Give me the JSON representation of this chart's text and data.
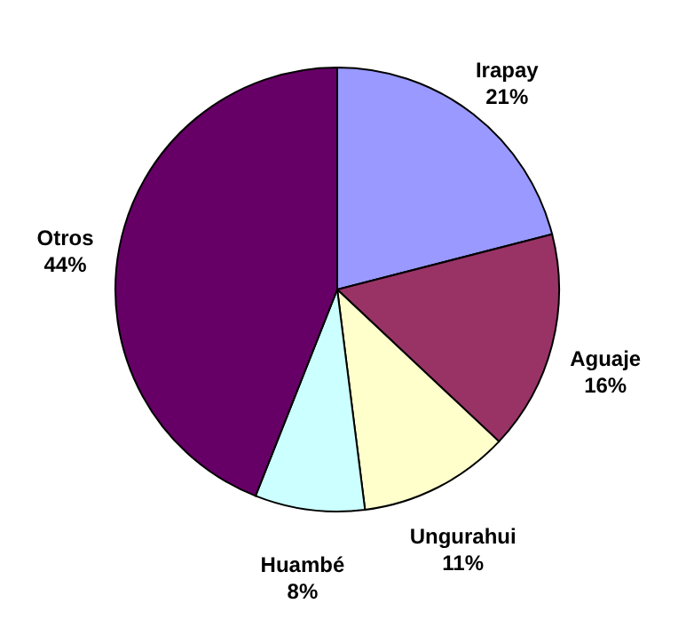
{
  "chart_data": {
    "type": "pie",
    "categories": [
      "Irapay",
      "Aguaje",
      "Ungurahui",
      "Huambé",
      "Otros"
    ],
    "values": [
      21,
      16,
      11,
      8,
      44
    ],
    "value_labels": [
      "21%",
      "16%",
      "11%",
      "8%",
      "44%"
    ],
    "colors": [
      "#9999ff",
      "#993366",
      "#ffffcc",
      "#ccffff",
      "#660066"
    ]
  }
}
